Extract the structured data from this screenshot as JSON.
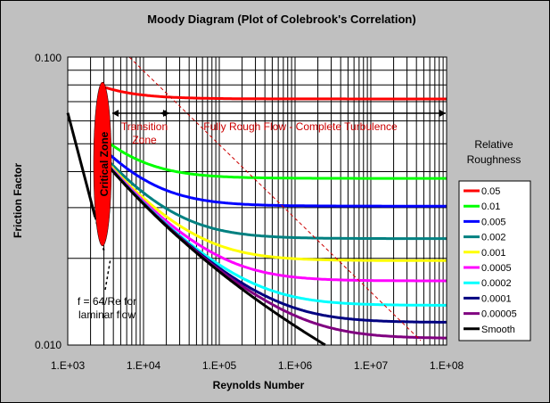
{
  "chart_data": {
    "type": "line",
    "title": "Moody Diagram (Plot of Colebrook's Correlation)",
    "xlabel": "Reynolds Number",
    "ylabel": "Friction Factor",
    "x_scale": "log",
    "y_scale": "log",
    "xlim": [
      1000,
      100000000
    ],
    "ylim": [
      0.01,
      0.1
    ],
    "grid": true,
    "x_tick_labels": [
      "1.E+03",
      "1.E+04",
      "1.E+05",
      "1.E+06",
      "1.E+07",
      "1.E+08"
    ],
    "y_tick_labels": [
      "0.100",
      "0.010"
    ],
    "legend": {
      "title_line1": "Relative",
      "title_line2": "Roughness",
      "placement": "right"
    },
    "annotations": {
      "critical_zone": "Critical Zone",
      "transition_line1": "Transition",
      "transition_line2": "Zone",
      "fully_rough": "Fully Rough Flow - Complete Turbulence",
      "laminar_line1": "f = 64/Re for",
      "laminar_line2": "laminar flow"
    },
    "series": [
      {
        "name": "0.05",
        "color": "#ff0000",
        "relative_roughness": 0.05
      },
      {
        "name": "0.01",
        "color": "#00ff00",
        "relative_roughness": 0.01
      },
      {
        "name": "0.005",
        "color": "#0000ff",
        "relative_roughness": 0.005
      },
      {
        "name": "0.002",
        "color": "#008080",
        "relative_roughness": 0.002
      },
      {
        "name": "0.001",
        "color": "#ffff00",
        "relative_roughness": 0.001
      },
      {
        "name": "0.0005",
        "color": "#ff00ff",
        "relative_roughness": 0.0005
      },
      {
        "name": "0.0002",
        "color": "#00ffff",
        "relative_roughness": 0.0002
      },
      {
        "name": "0.0001",
        "color": "#000080",
        "relative_roughness": 0.0001
      },
      {
        "name": "0.00005",
        "color": "#800080",
        "relative_roughness": 5e-05
      },
      {
        "name": "Smooth",
        "color": "#000000",
        "relative_roughness": 0
      }
    ],
    "laminar": {
      "re_start": 1000,
      "re_end": 2300,
      "color": "#000000"
    }
  }
}
